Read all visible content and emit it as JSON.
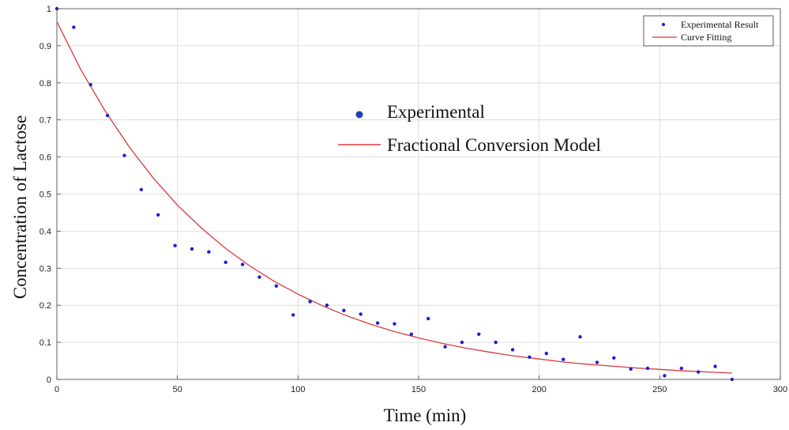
{
  "chart_data": {
    "type": "scatter",
    "xlabel": "Time (min)",
    "ylabel": "Concentration of Lactose",
    "xlim": [
      0,
      300
    ],
    "ylim": [
      0,
      1
    ],
    "xticks": [
      0,
      50,
      100,
      150,
      200,
      250,
      300
    ],
    "yticks": [
      0,
      0.1,
      0.2,
      0.3,
      0.4,
      0.5,
      0.6,
      0.7,
      0.8,
      0.9,
      1
    ],
    "grid": true,
    "legend_position": "top-right",
    "legend": [
      "Experimental Result",
      "Curve Fitting"
    ],
    "annotations": [
      "Experimental",
      "Fractional Conversion Model"
    ],
    "series": [
      {
        "name": "Experimental Result",
        "kind": "scatter",
        "color": "#1f1fcf",
        "x": [
          0,
          7,
          14,
          21,
          28,
          35,
          42,
          49,
          56,
          63,
          70,
          77,
          84,
          91,
          98,
          105,
          112,
          119,
          126,
          133,
          140,
          147,
          154,
          161,
          168,
          175,
          182,
          189,
          196,
          203,
          210,
          217,
          224,
          231,
          238,
          245,
          252,
          259,
          266,
          273,
          280
        ],
        "y": [
          1.0,
          0.95,
          0.795,
          0.712,
          0.604,
          0.512,
          0.444,
          0.361,
          0.352,
          0.344,
          0.316,
          0.31,
          0.276,
          0.252,
          0.174,
          0.21,
          0.2,
          0.186,
          0.176,
          0.152,
          0.15,
          0.122,
          0.164,
          0.088,
          0.1,
          0.122,
          0.1,
          0.08,
          0.06,
          0.07,
          0.054,
          0.115,
          0.046,
          0.058,
          0.028,
          0.03,
          0.01,
          0.03,
          0.02,
          0.035,
          0.0
        ]
      },
      {
        "name": "Curve Fitting",
        "kind": "line",
        "color": "#d9393f",
        "x": [
          0,
          10,
          20,
          30,
          40,
          50,
          60,
          70,
          80,
          90,
          100,
          110,
          120,
          130,
          140,
          150,
          160,
          170,
          180,
          190,
          200,
          210,
          220,
          230,
          240,
          250,
          260,
          270,
          280
        ],
        "y": [
          0.965,
          0.835,
          0.724,
          0.627,
          0.543,
          0.47,
          0.408,
          0.353,
          0.306,
          0.265,
          0.23,
          0.199,
          0.172,
          0.149,
          0.129,
          0.112,
          0.097,
          0.084,
          0.073,
          0.063,
          0.055,
          0.047,
          0.041,
          0.036,
          0.031,
          0.027,
          0.023,
          0.02,
          0.017
        ]
      }
    ]
  }
}
